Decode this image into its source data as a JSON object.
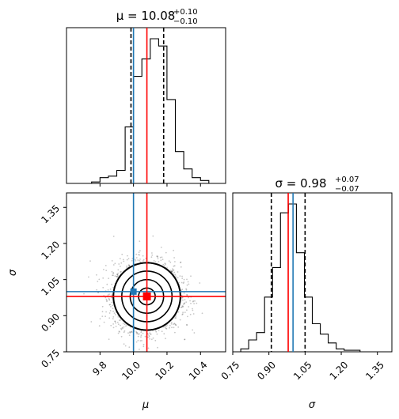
{
  "chart_data": [
    {
      "type": "histogram",
      "panel": "mu-marginal",
      "title": {
        "text": "μ = 10.08",
        "sup": "+0.10",
        "sub": "−0.10"
      },
      "xlim": [
        9.6,
        10.55
      ],
      "bins_start": 9.6,
      "bin_width": 0.05,
      "counts": [
        0,
        0,
        0,
        0.01,
        0.04,
        0.05,
        0.09,
        0.39,
        0.74,
        0.86,
        1.0,
        0.95,
        0.58,
        0.22,
        0.1,
        0.04,
        0.02,
        0.0,
        0.0
      ],
      "quantile_lines": [
        9.985,
        10.08,
        10.18
      ],
      "median": 10.08,
      "truth": 10.0,
      "colors": {
        "hist": "#000000",
        "quantiles": "#000000",
        "median": "#ff0000",
        "truth": "#1f77b4"
      }
    },
    {
      "type": "scatter-density",
      "panel": "mu-sigma-joint",
      "xlim": [
        9.6,
        10.55
      ],
      "ylim": [
        0.75,
        1.41
      ],
      "xticks": [
        "9.8",
        "10.0",
        "10.2",
        "10.4"
      ],
      "yticks": [
        "0.75",
        "0.90",
        "1.05",
        "1.20",
        "1.35"
      ],
      "xlabel": "μ",
      "ylabel": "σ",
      "center": {
        "x": 10.08,
        "y": 0.98
      },
      "spread": {
        "x": 0.1,
        "y": 0.07
      },
      "contour_levels_sigma": [
        0.5,
        1.0,
        1.5,
        2.0
      ],
      "truth": {
        "x": 10.0,
        "y": 1.0
      },
      "estimate": {
        "x": 10.08,
        "y": 0.98
      },
      "colors": {
        "points": "#000000",
        "contours": "#000000",
        "truth": "#1f77b4",
        "estimate": "#ff0000"
      }
    },
    {
      "type": "histogram",
      "panel": "sigma-marginal",
      "title": {
        "text": "σ = 0.98",
        "sup": "+0.07",
        "sub": "−0.07"
      },
      "xlim": [
        0.75,
        1.41
      ],
      "bins_start": 0.75,
      "bin_width": 0.033,
      "counts": [
        0,
        0.02,
        0.08,
        0.13,
        0.37,
        0.57,
        0.94,
        1.0,
        0.67,
        0.37,
        0.19,
        0.12,
        0.06,
        0.02,
        0.01,
        0.01,
        0,
        0,
        0,
        0
      ],
      "xticks": [
        "0.75",
        "0.90",
        "1.05",
        "1.20",
        "1.35"
      ],
      "xlabel": "σ",
      "quantile_lines": [
        0.91,
        0.98,
        1.05
      ],
      "median": 0.98,
      "truth": 1.0,
      "colors": {
        "hist": "#000000",
        "quantiles": "#000000",
        "median": "#ff0000",
        "truth": "#1f77b4"
      }
    }
  ]
}
